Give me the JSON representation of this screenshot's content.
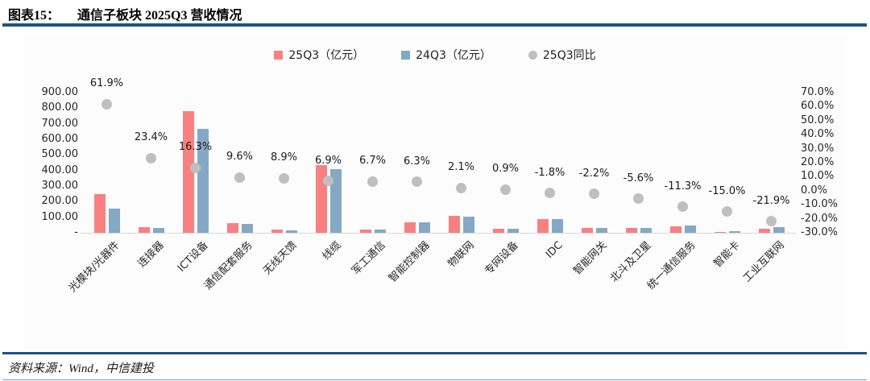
{
  "header": {
    "figure_no": "图表15：",
    "title": "通信子板块 2025Q3 营收情况"
  },
  "footer": {
    "source": "资料来源：Wind，中信建投"
  },
  "colors": {
    "bar_25q3": "#F98080",
    "bar_24q3": "#85A8C4",
    "dot_yoy": "#BFBFBF",
    "rule_navy": "#1C5383",
    "axis_line": "#D9D9D9"
  },
  "legend": [
    {
      "label": "25Q3（亿元）",
      "marker": "square",
      "color": "#F98080"
    },
    {
      "label": "24Q3（亿元）",
      "marker": "square",
      "color": "#85A8C4"
    },
    {
      "label": "25Q3同比",
      "marker": "circle",
      "color": "#BFBFBF"
    }
  ],
  "chart_data": {
    "type": "bar",
    "subtype": "grouped bars + scatter dots on secondary percent axis",
    "title": "通信子板块 2025Q3 营收情况",
    "categories": [
      "光模块/光器件",
      "连接器",
      "ICT设备",
      "通信配套服务",
      "无线天馈",
      "线缆",
      "军工通信",
      "智能控制器",
      "物联网",
      "专网设备",
      "IDC",
      "智能网关",
      "北斗及卫星",
      "统一通信服务",
      "智能卡",
      "工业互联网"
    ],
    "series": [
      {
        "name": "25Q3（亿元）",
        "kind": "bar",
        "axis": "left",
        "color": "#F98080",
        "values": [
          250,
          37,
          780,
          60,
          20,
          437,
          21,
          70,
          107,
          25,
          87,
          29,
          30,
          42,
          8,
          27
        ]
      },
      {
        "name": "24Q3（亿元）",
        "kind": "bar",
        "axis": "left",
        "color": "#85A8C4",
        "values": [
          154,
          30,
          670,
          55,
          18,
          409,
          20,
          66,
          105,
          24,
          89,
          30,
          32,
          47,
          9,
          34
        ]
      },
      {
        "name": "25Q3同比",
        "kind": "scatter",
        "axis": "right",
        "color": "#BFBFBF",
        "values": [
          61.9,
          23.4,
          16.3,
          9.6,
          8.9,
          6.9,
          6.7,
          6.3,
          2.1,
          0.9,
          -1.8,
          -2.2,
          -5.6,
          -11.3,
          -15.0,
          -21.9
        ]
      }
    ],
    "point_labels": [
      "61.9%",
      "23.4%",
      "16.3%",
      "9.6%",
      "8.9%",
      "6.9%",
      "6.7%",
      "6.3%",
      "2.1%",
      "0.9%",
      "-1.8%",
      "-2.2%",
      "-5.6%",
      "-11.3%",
      "-15.0%",
      "-21.9%"
    ],
    "left_axis": {
      "min": 0,
      "max": 900,
      "step": 100,
      "tick_labels": [
        "900.00",
        "800.00",
        "700.00",
        "600.00",
        "500.00",
        "400.00",
        "300.00",
        "200.00",
        "100.00",
        "-"
      ]
    },
    "right_axis": {
      "min": -30,
      "max": 70,
      "step": 10,
      "tick_labels": [
        "70.0%",
        "60.0%",
        "50.0%",
        "40.0%",
        "30.0%",
        "20.0%",
        "10.0%",
        "0.0%",
        "-10.0%",
        "-20.0%",
        "-30.0%"
      ]
    },
    "grid": "off",
    "legend_position": "top-center"
  }
}
